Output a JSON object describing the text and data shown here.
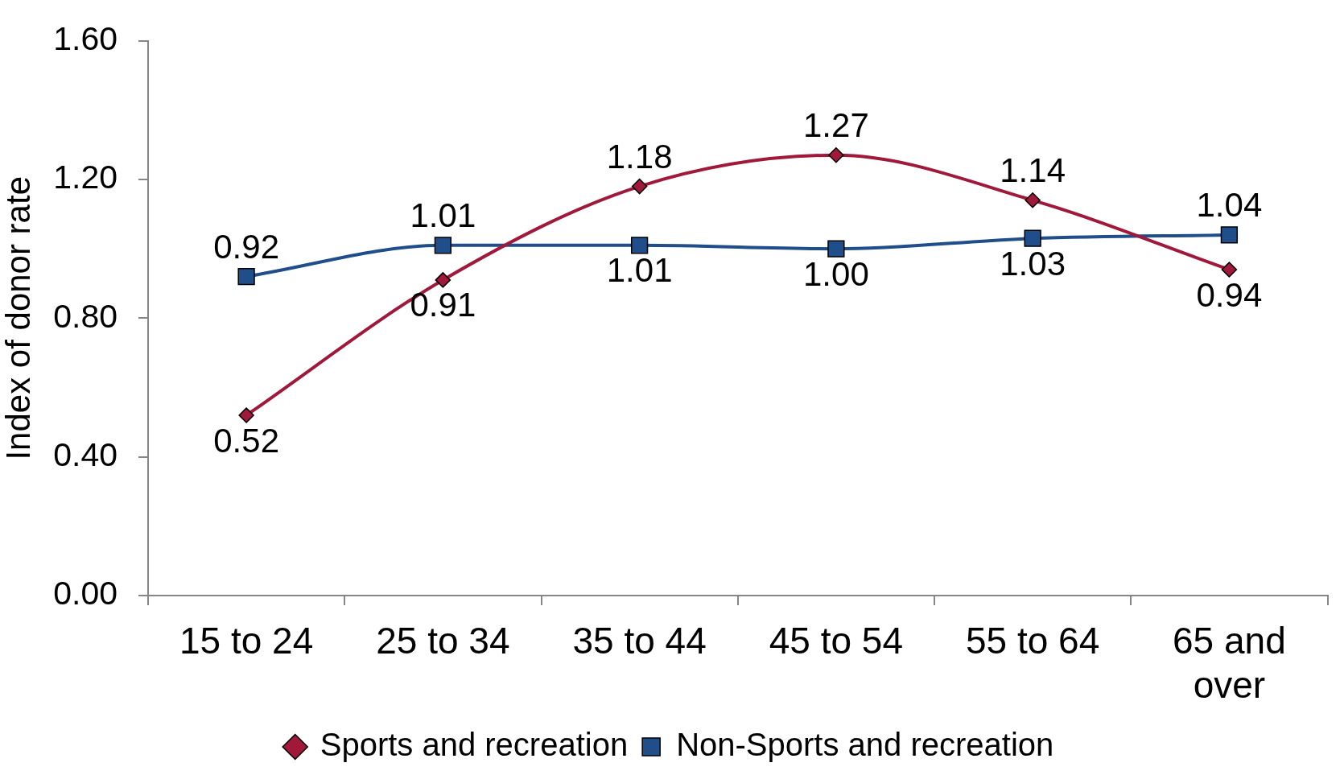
{
  "chart_data": {
    "type": "line",
    "ylabel": "Index of donor rate",
    "categories": [
      "15 to 24",
      "25 to 34",
      "35 to 44",
      "45 to 54",
      "55 to 64",
      "65 and over"
    ],
    "series": [
      {
        "name": "Sports and recreation",
        "color": "#a0183a",
        "marker": "diamond",
        "values": [
          0.52,
          0.91,
          1.18,
          1.27,
          1.14,
          0.94
        ],
        "value_labels": [
          "0.52",
          "0.91",
          "1.18",
          "1.27",
          "1.14",
          "0.94"
        ]
      },
      {
        "name": "Non-Sports and recreation",
        "color": "#1f4e8b",
        "marker": "square",
        "values": [
          0.92,
          1.01,
          1.01,
          1.0,
          1.03,
          1.04
        ],
        "value_labels": [
          "0.92",
          "1.01",
          "1.01",
          "1.00",
          "1.03",
          "1.04"
        ]
      }
    ],
    "ylim": [
      0,
      1.6
    ],
    "yticks": [
      {
        "value": 0,
        "label": "0.00"
      },
      {
        "value": 0.4,
        "label": "0.40"
      },
      {
        "value": 0.8,
        "label": "0.80"
      },
      {
        "value": 1.2,
        "label": "1.20"
      },
      {
        "value": 1.6,
        "label": "1.60"
      }
    ],
    "grid": false,
    "legend": "bottom"
  }
}
